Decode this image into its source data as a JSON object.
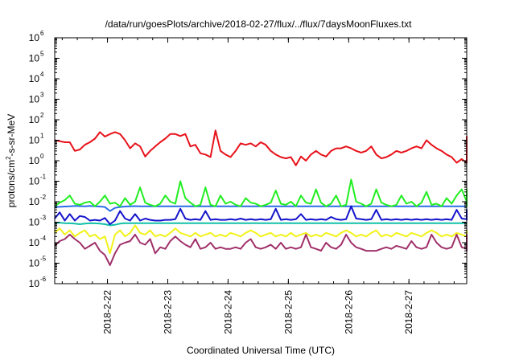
{
  "chart_data": {
    "type": "line",
    "title": "/data/run/goesPlots/archive/2018-02-27/flux/../flux/7daysMoonFluxes.txt",
    "xlabel": "Coordinated Universal Time (UTC)",
    "ylabel": {
      "prefix": "protons/cm",
      "sup": "2",
      "suffix": "-s-sr-MeV"
    },
    "yscale": "log",
    "ylim": [
      1e-06,
      1000000.0
    ],
    "yticks": [
      {
        "base": "10",
        "exp": "-6",
        "value": 1e-06
      },
      {
        "base": "10",
        "exp": "-5",
        "value": 1e-05
      },
      {
        "base": "10",
        "exp": "-4",
        "value": 0.0001
      },
      {
        "base": "10",
        "exp": "-3",
        "value": 0.001
      },
      {
        "base": "10",
        "exp": "-2",
        "value": 0.01
      },
      {
        "base": "10",
        "exp": "-1",
        "value": 0.1
      },
      {
        "base": "10",
        "exp": "0",
        "value": 1
      },
      {
        "base": "10",
        "exp": "1",
        "value": 10
      },
      {
        "base": "10",
        "exp": "2",
        "value": 100
      },
      {
        "base": "10",
        "exp": "3",
        "value": 1000
      },
      {
        "base": "10",
        "exp": "4",
        "value": 10000
      },
      {
        "base": "10",
        "exp": "5",
        "value": 100000
      },
      {
        "base": "10",
        "exp": "6",
        "value": 1000000
      }
    ],
    "xlim": [
      "2018-02-21 03:00",
      "2018-02-27 23:00"
    ],
    "xticks": [
      "2018-2-22",
      "2018-2-23",
      "2018-2-24",
      "2018-2-25",
      "2018-2-26",
      "2018-2-27"
    ],
    "grid": false,
    "legend": "none",
    "series": [
      {
        "color": "#e8121a",
        "start": "2018-02-21 03:00",
        "step_hours": 2,
        "values": [
          10,
          9,
          8,
          8,
          3,
          3.5,
          6,
          8,
          12,
          25,
          15,
          20,
          25,
          20,
          10,
          4,
          7,
          5,
          1.6,
          3,
          5,
          8,
          12,
          20,
          20,
          16,
          20,
          5,
          6,
          2.3,
          2,
          1.5,
          30,
          3,
          2,
          1.5,
          3,
          7,
          6,
          7,
          5,
          8,
          6,
          3,
          2,
          1.5,
          1.3,
          1.5,
          0.6,
          1.6,
          1,
          2,
          3,
          2,
          1.6,
          3,
          4,
          4,
          5,
          4,
          3,
          2.5,
          3,
          5,
          2,
          1.3,
          1.5,
          2,
          3,
          2.5,
          3,
          4,
          5,
          4,
          10,
          6,
          4,
          3,
          2,
          1.5,
          0.8,
          1.2,
          0.8,
          1.3,
          1,
          1.5,
          2,
          3,
          5,
          5,
          8,
          10,
          3,
          2,
          1.2,
          5,
          7,
          4,
          6,
          5,
          8,
          2,
          6,
          7,
          5,
          8,
          15,
          6,
          7
        ]
      },
      {
        "color": "#22ee22",
        "start": "2018-02-21 03:00",
        "step_hours": 2,
        "values": [
          0.006,
          0.009,
          0.012,
          0.02,
          0.008,
          0.007,
          0.009,
          0.01,
          0.006,
          0.01,
          0.02,
          0.008,
          0.009,
          0.006,
          0.015,
          0.007,
          0.01,
          0.05,
          0.009,
          0.007,
          0.006,
          0.008,
          0.02,
          0.01,
          0.008,
          0.1,
          0.015,
          0.009,
          0.006,
          0.007,
          0.05,
          0.007,
          0.006,
          0.02,
          0.008,
          0.01,
          0.007,
          0.006,
          0.015,
          0.009,
          0.008,
          0.006,
          0.007,
          0.009,
          0.035,
          0.008,
          0.007,
          0.01,
          0.006,
          0.02,
          0.009,
          0.008,
          0.04,
          0.009,
          0.006,
          0.008,
          0.02,
          0.006,
          0.007,
          0.12,
          0.01,
          0.008,
          0.006,
          0.008,
          0.04,
          0.009,
          0.007,
          0.006,
          0.007,
          0.02,
          0.008,
          0.01,
          0.006,
          0.009,
          0.03,
          0.007,
          0.008,
          0.006,
          0.015,
          0.008,
          0.02,
          0.04,
          0.01,
          0.007,
          0.006,
          0.009,
          0.03,
          0.008,
          0.006,
          0.009,
          0.006,
          0.03,
          0.008,
          0.006,
          0.035,
          0.02,
          0.01,
          0.006,
          0.02,
          0.015,
          0.01,
          0.008,
          0.04,
          0.015,
          0.01
        ]
      },
      {
        "color": "#2a6de8",
        "start": "2018-02-21 03:00",
        "step_hours": 2,
        "values": [
          0.0055,
          0.0056,
          0.0058,
          0.006,
          0.0062,
          0.0061,
          0.006,
          0.0062,
          0.006,
          0.0058,
          0.0055,
          0.0035,
          0.005,
          0.0055,
          0.0058,
          0.006,
          0.0061,
          0.006,
          0.006,
          0.006,
          0.006,
          0.006,
          0.006,
          0.006,
          0.006,
          0.006,
          0.006,
          0.006,
          0.006,
          0.006,
          0.006,
          0.006,
          0.006,
          0.006,
          0.006,
          0.006,
          0.006,
          0.006,
          0.006,
          0.006,
          0.006,
          0.006,
          0.006,
          0.006,
          0.006,
          0.006,
          0.006,
          0.006,
          0.006,
          0.006,
          0.006,
          0.006,
          0.006,
          0.006,
          0.006,
          0.006,
          0.006,
          0.006,
          0.006,
          0.006,
          0.006,
          0.006,
          0.006,
          0.006,
          0.006,
          0.006,
          0.006,
          0.006,
          0.006,
          0.006,
          0.006,
          0.006,
          0.006,
          0.006,
          0.006,
          0.006,
          0.006,
          0.006,
          0.006,
          0.006,
          0.006,
          0.006,
          0.006,
          0.006,
          0.006,
          0.006,
          0.006,
          0.006,
          0.006,
          0.006,
          0.006,
          0.006,
          0.006,
          0.006,
          0.006,
          0.006,
          0.006,
          0.006,
          0.006,
          0.006,
          0.006,
          0.006,
          0.006,
          0.006,
          0.006
        ]
      },
      {
        "color": "#1414cc",
        "start": "2018-02-21 03:00",
        "step_hours": 2,
        "values": [
          0.0015,
          0.003,
          0.0012,
          0.0025,
          0.0012,
          0.002,
          0.0018,
          0.0012,
          0.0013,
          0.0012,
          0.0016,
          0.0008,
          0.0012,
          0.0035,
          0.0015,
          0.0012,
          0.0025,
          0.0012,
          0.0015,
          0.0013,
          0.0012,
          0.0012,
          0.0013,
          0.0013,
          0.0014,
          0.0045,
          0.0015,
          0.0013,
          0.0014,
          0.0013,
          0.0035,
          0.0013,
          0.0014,
          0.0013,
          0.0013,
          0.0014,
          0.0013,
          0.0015,
          0.0013,
          0.0014,
          0.0013,
          0.0014,
          0.0013,
          0.0014,
          0.0045,
          0.0013,
          0.0014,
          0.0013,
          0.0014,
          0.0025,
          0.0013,
          0.0014,
          0.0013,
          0.0014,
          0.0013,
          0.0018,
          0.0014,
          0.0013,
          0.0014,
          0.006,
          0.0015,
          0.0014,
          0.0013,
          0.0014,
          0.004,
          0.0013,
          0.0014,
          0.0013,
          0.0014,
          0.0013,
          0.0014,
          0.0013,
          0.0014,
          0.0013,
          0.0014,
          0.0013,
          0.0014,
          0.0013,
          0.0014,
          0.0013,
          0.004,
          0.0015,
          0.0014,
          0.0013,
          0.0014,
          0.0013,
          0.0014,
          0.0025,
          0.0013,
          0.0014,
          0.0013,
          0.003,
          0.0014,
          0.0013,
          0.0014,
          0.0013,
          0.0014,
          0.0013,
          0.004,
          0.0014,
          0.0013,
          0.0015,
          0.003,
          0.0018,
          0.0015
        ]
      },
      {
        "color": "#12c0a8",
        "start": "2018-02-21 03:00",
        "step_hours": 2,
        "values": [
          0.0009,
          0.00095,
          0.0009,
          0.00088,
          0.00085,
          0.0008,
          0.00085,
          0.0009,
          0.00088,
          0.00085,
          0.0008,
          0.0007,
          0.00075,
          0.00085,
          0.0009,
          0.0009,
          0.0009,
          0.0009,
          0.0009,
          0.0009,
          0.0009,
          0.0009,
          0.0009,
          0.0009,
          0.0009,
          0.0009,
          0.0009,
          0.0009,
          0.0009,
          0.0009,
          0.0009,
          0.0009,
          0.0009,
          0.0009,
          0.0009,
          0.0009,
          0.0009,
          0.0009,
          0.0009,
          0.0009,
          0.0009,
          0.0009,
          0.0009,
          0.0009,
          0.0009,
          0.0009,
          0.0009,
          0.0009,
          0.0009,
          0.0009,
          0.0009,
          0.0009,
          0.0009,
          0.0009,
          0.0009,
          0.0009,
          0.0009,
          0.0009,
          0.0009,
          0.0009,
          0.0009,
          0.0009,
          0.0009,
          0.0009,
          0.0009,
          0.0009,
          0.0009,
          0.0009,
          0.0009,
          0.0009,
          0.0009,
          0.0009,
          0.0009,
          0.0009,
          0.0009,
          0.0009,
          0.0009,
          0.0009,
          0.0009,
          0.0009,
          0.0009,
          0.0009,
          0.0009,
          0.0009,
          0.0009,
          0.0009,
          0.0009,
          0.0009,
          0.0009,
          0.0009,
          0.0009,
          0.0009,
          0.0009,
          0.0009,
          0.0009,
          0.0009,
          0.0009,
          0.0009,
          0.0009,
          0.0009,
          0.0009,
          0.0009,
          0.0009,
          0.0009,
          0.0009
        ]
      },
      {
        "color": "#f2f21a",
        "start": "2018-02-21 03:00",
        "step_hours": 2,
        "values": [
          0.0003,
          0.0005,
          0.00025,
          0.0004,
          0.0002,
          0.0003,
          0.0004,
          0.0002,
          0.00025,
          0.00015,
          0.0002,
          3e-05,
          0.00025,
          0.0004,
          0.0002,
          0.0003,
          0.0007,
          0.0003,
          0.00025,
          0.0004,
          0.0002,
          0.00025,
          0.0002,
          0.0003,
          0.0005,
          0.0003,
          0.00025,
          0.0002,
          0.0003,
          0.0002,
          0.00025,
          0.0003,
          0.0002,
          0.00025,
          0.0002,
          0.0003,
          0.00025,
          0.0002,
          0.0003,
          0.0004,
          0.0003,
          0.0002,
          0.00025,
          0.0003,
          0.0002,
          0.00025,
          0.0002,
          0.0003,
          0.0002,
          0.00025,
          0.0003,
          0.0002,
          0.00025,
          0.0002,
          0.0003,
          0.00025,
          0.0002,
          0.0003,
          0.0004,
          0.0003,
          0.0002,
          0.00025,
          0.0002,
          0.0003,
          0.0004,
          0.0002,
          0.00025,
          0.0002,
          0.0003,
          0.00025,
          0.0002,
          0.0003,
          0.00025,
          0.0002,
          0.0003,
          0.0004,
          0.0003,
          0.0002,
          0.00025,
          0.0002,
          0.0003,
          0.00025,
          0.0002,
          0.0003,
          0.0002,
          0.00025,
          0.0003,
          0.0002,
          0.00025,
          0.0002,
          0.0003,
          0.00025,
          0.0002,
          0.0003,
          0.0004,
          0.0003,
          0.0002,
          0.00025,
          0.0002,
          0.0003,
          0.00025,
          0.0002,
          0.0003,
          0.0004,
          0.0003
        ]
      },
      {
        "color": "#a0306a",
        "start": "2018-02-21 03:00",
        "step_hours": 2,
        "values": [
          7e-05,
          0.00012,
          0.00015,
          0.00025,
          0.00015,
          0.0001,
          5e-05,
          7e-05,
          0.0001,
          4e-05,
          2.5e-05,
          8e-06,
          3e-05,
          8e-05,
          0.0001,
          0.00012,
          0.00025,
          0.0001,
          8e-05,
          0.00015,
          3e-05,
          6e-05,
          5e-05,
          0.00012,
          0.0002,
          0.00012,
          8e-05,
          6e-05,
          0.00015,
          5e-05,
          6e-05,
          0.0001,
          5e-05,
          6e-05,
          5e-05,
          5e-05,
          6e-05,
          5e-05,
          0.0001,
          0.00015,
          6e-05,
          5e-05,
          6e-05,
          8e-05,
          5e-05,
          0.0001,
          5e-05,
          6e-05,
          5e-05,
          6e-05,
          0.00025,
          6e-05,
          5e-05,
          4e-05,
          0.0001,
          6e-05,
          5e-05,
          8e-05,
          0.00025,
          0.0001,
          6e-05,
          5e-05,
          4e-05,
          4e-05,
          4e-05,
          5e-05,
          6e-05,
          5e-05,
          7e-05,
          6e-05,
          5e-05,
          0.00012,
          6e-05,
          5e-05,
          6e-05,
          0.00025,
          0.0001,
          6e-05,
          5e-05,
          6e-05,
          0.00025,
          6e-05,
          5e-05,
          6e-05,
          0.0002,
          6e-05,
          5e-05,
          0.00012,
          6e-05,
          5e-05,
          6e-05,
          0.00012,
          6e-05,
          4e-05,
          5e-05,
          6e-05,
          0.0001,
          5e-05,
          6e-05,
          0.00025,
          0.0001,
          6e-05,
          0.0001,
          5e-05,
          4e-05
        ]
      }
    ]
  }
}
